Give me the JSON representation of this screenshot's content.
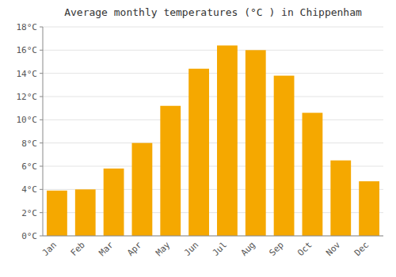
{
  "chart_data": {
    "type": "bar",
    "title": "Average monthly temperatures (°C ) in Chippenham",
    "categories": [
      "Jan",
      "Feb",
      "Mar",
      "Apr",
      "May",
      "Jun",
      "Jul",
      "Aug",
      "Sep",
      "Oct",
      "Nov",
      "Dec"
    ],
    "values": [
      3.9,
      4.0,
      5.8,
      8.0,
      11.2,
      14.4,
      16.4,
      16.0,
      13.8,
      10.6,
      6.5,
      4.7
    ],
    "color": "#F5A800",
    "ylim": [
      0,
      18
    ],
    "yticks": [
      {
        "value": 0,
        "label": "0°C"
      },
      {
        "value": 2,
        "label": "2°C"
      },
      {
        "value": 4,
        "label": "4°C"
      },
      {
        "value": 6,
        "label": "6°C"
      },
      {
        "value": 8,
        "label": "8°C"
      },
      {
        "value": 10,
        "label": "10°C"
      },
      {
        "value": 12,
        "label": "12°C"
      },
      {
        "value": 14,
        "label": "14°C"
      },
      {
        "value": 16,
        "label": "16°C"
      },
      {
        "value": 18,
        "label": "18°C"
      }
    ],
    "grid": true
  }
}
